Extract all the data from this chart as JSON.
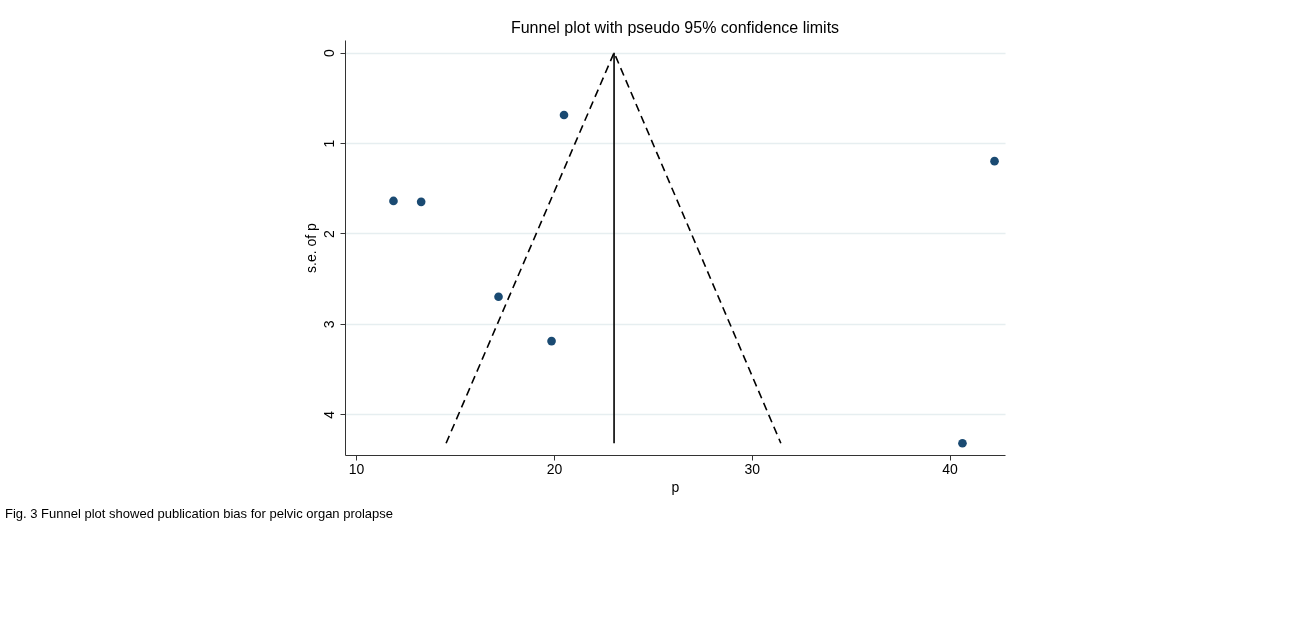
{
  "chart_data": {
    "type": "scatter",
    "title": "Funnel plot with pseudo 95% confidence limits",
    "xlabel": "p",
    "ylabel": "s.e. of p",
    "annotations": [
      "Fig. 3 Funnel plot showed publication bias for pelvic organ prolapse"
    ],
    "series": [
      {
        "color": "#1a4a72",
        "marker": "circle",
        "x": [
          11.89,
          13.29,
          20.51,
          17.2,
          19.88,
          42.27,
          40.65
        ],
        "values": [
          1.64,
          1.65,
          0.69,
          2.7,
          3.19,
          1.2,
          4.32
        ]
      },
      {
        "type": "line",
        "color": "#000000",
        "line_style": "solid",
        "x": [
          23.04,
          23.04
        ],
        "values": [
          4.32,
          0
        ]
      },
      {
        "type": "line",
        "color": "#000000",
        "line_style": "dashed",
        "x": [
          14.55,
          23.04,
          31.47
        ],
        "values": [
          4.32,
          0,
          4.32
        ]
      }
    ],
    "xlim": [
      9.44,
      42.8
    ],
    "xticks": [
      10,
      20,
      30,
      40
    ],
    "ylim": [
      4.45,
      -0.14
    ],
    "yticks": [
      0,
      1,
      2,
      3,
      4
    ],
    "grid": "y",
    "legend": false
  }
}
